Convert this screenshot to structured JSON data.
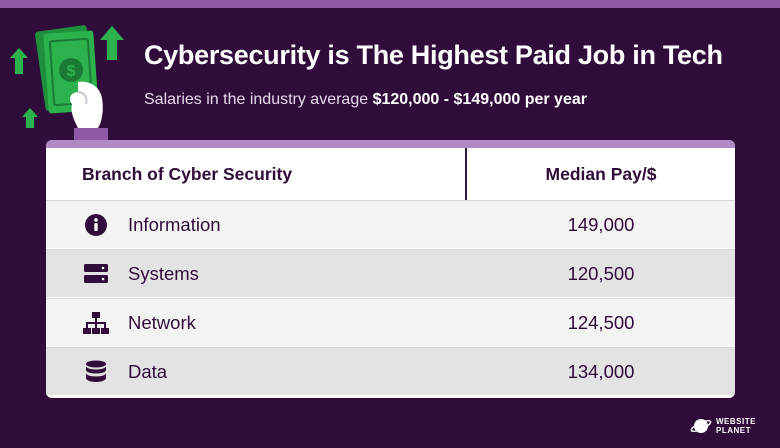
{
  "header": {
    "title": "Cybersecurity is The Highest Paid Job in Tech",
    "subtitle_prefix": "Salaries in the industry average ",
    "subtitle_highlight": "$120,000 - $149,000 per year"
  },
  "table": {
    "columns": [
      "Branch of Cyber Security",
      "Median Pay/$"
    ],
    "rows": [
      {
        "icon": "info-icon",
        "branch": "Information",
        "pay": "149,000"
      },
      {
        "icon": "server-icon",
        "branch": "Systems",
        "pay": "120,500"
      },
      {
        "icon": "network-icon",
        "branch": "Network",
        "pay": "124,500"
      },
      {
        "icon": "database-icon",
        "branch": "Data",
        "pay": "134,000"
      }
    ]
  },
  "logo": {
    "line1": "WEBSITE",
    "line2": "PLANET"
  },
  "colors": {
    "background": "#2f0c3a",
    "accent": "#8e5aa8",
    "money_green": "#2bb24c",
    "text_dark": "#2f0c3a"
  }
}
